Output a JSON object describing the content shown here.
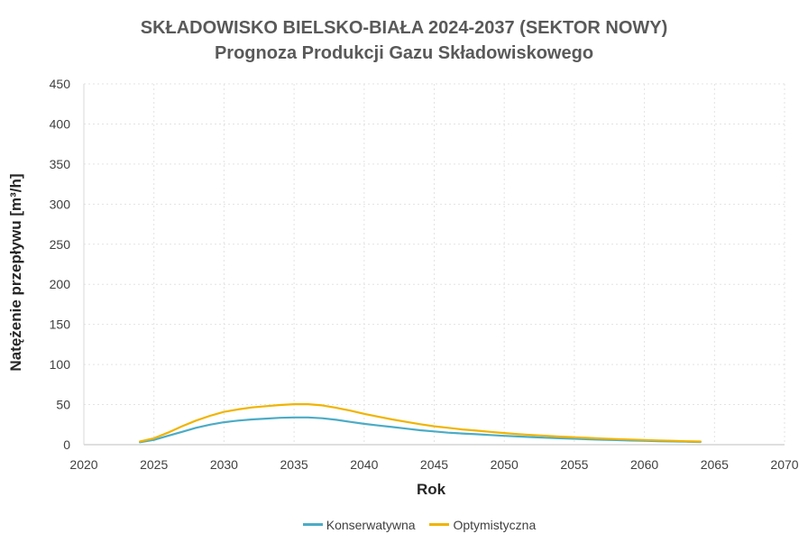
{
  "chart_data": {
    "type": "line",
    "title": "SKŁADOWISKO BIELSKO-BIAŁA 2024-2037 (SEKTOR NOWY)",
    "subtitle": "Prognoza Produkcji Gazu Składowiskowego",
    "xlabel": "Rok",
    "ylabel": "Natężenie przepływu [m³/h]",
    "xlim": [
      2020,
      2070
    ],
    "ylim": [
      0,
      450
    ],
    "xticks": [
      2020,
      2025,
      2030,
      2035,
      2040,
      2045,
      2050,
      2055,
      2060,
      2065,
      2070
    ],
    "yticks": [
      0,
      50,
      100,
      150,
      200,
      250,
      300,
      350,
      400,
      450
    ],
    "grid": true,
    "legend_position": "bottom",
    "series": [
      {
        "name": "Konserwatywna",
        "color": "#4bacc6",
        "x": [
          2024,
          2025,
          2026,
          2027,
          2028,
          2029,
          2030,
          2031,
          2032,
          2033,
          2034,
          2035,
          2036,
          2037,
          2038,
          2039,
          2040,
          2041,
          2042,
          2043,
          2044,
          2045,
          2046,
          2047,
          2048,
          2049,
          2050,
          2051,
          2052,
          2053,
          2054,
          2055,
          2056,
          2057,
          2058,
          2059,
          2060,
          2061,
          2062,
          2063,
          2064
        ],
        "values": [
          3,
          6,
          11,
          16,
          21,
          25,
          28,
          30,
          31.5,
          32.5,
          33.5,
          34,
          34,
          33,
          31,
          28.5,
          26,
          24,
          22,
          20,
          18,
          16.5,
          15,
          14,
          13,
          12,
          11,
          10.2,
          9.4,
          8.7,
          8,
          7.4,
          6.8,
          6.2,
          5.7,
          5.2,
          4.8,
          4.4,
          4,
          3.7,
          3.4
        ]
      },
      {
        "name": "Optymistyczna",
        "color": "#f0b400",
        "x": [
          2024,
          2025,
          2026,
          2027,
          2028,
          2029,
          2030,
          2031,
          2032,
          2033,
          2034,
          2035,
          2036,
          2037,
          2038,
          2039,
          2040,
          2041,
          2042,
          2043,
          2044,
          2045,
          2046,
          2047,
          2048,
          2049,
          2050,
          2051,
          2052,
          2053,
          2054,
          2055,
          2056,
          2057,
          2058,
          2059,
          2060,
          2061,
          2062,
          2063,
          2064
        ],
        "values": [
          4,
          8,
          15,
          23,
          30,
          36,
          41,
          44,
          46.5,
          48,
          49.5,
          50.5,
          50.5,
          49,
          46,
          42.5,
          38.5,
          35,
          31.5,
          28.5,
          25.5,
          23,
          21,
          19,
          17.5,
          16,
          14.5,
          13.2,
          12,
          11,
          10,
          9.2,
          8.4,
          7.7,
          7,
          6.4,
          5.8,
          5.3,
          4.8,
          4.3,
          3.9
        ]
      }
    ]
  }
}
